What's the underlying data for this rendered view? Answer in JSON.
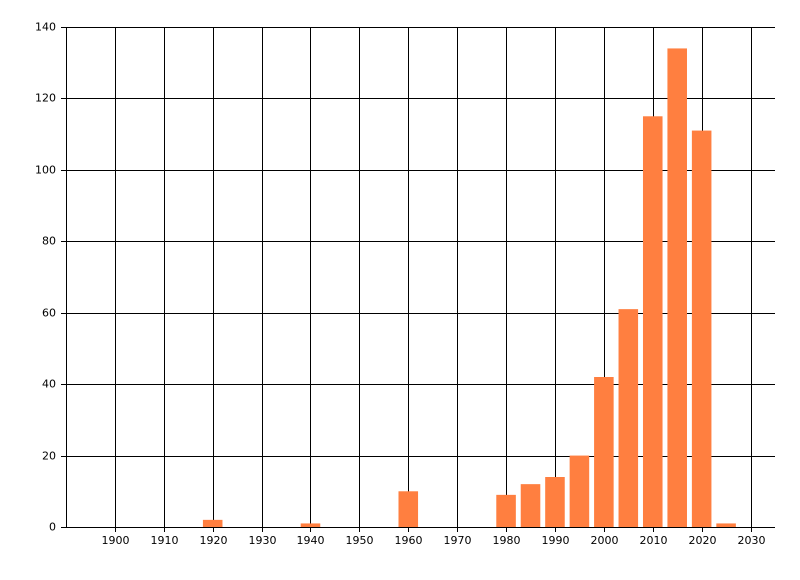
{
  "chart_data": {
    "type": "bar",
    "x": [
      1920,
      1940,
      1960,
      1980,
      1985,
      1990,
      1995,
      2000,
      2005,
      2010,
      2015,
      2020,
      2025
    ],
    "values": [
      2,
      1,
      10,
      9,
      12,
      14,
      20,
      42,
      61,
      115,
      134,
      111,
      1
    ],
    "color": "#ff7f40",
    "xlim": [
      1890,
      2035
    ],
    "xticks": [
      1900,
      1910,
      1920,
      1930,
      1940,
      1950,
      1960,
      1970,
      1980,
      1990,
      2000,
      2010,
      2020,
      2030
    ],
    "ylim": [
      0,
      140
    ],
    "yticks": [
      0,
      20,
      40,
      60,
      80,
      100,
      120,
      140
    ],
    "grid": true
  }
}
